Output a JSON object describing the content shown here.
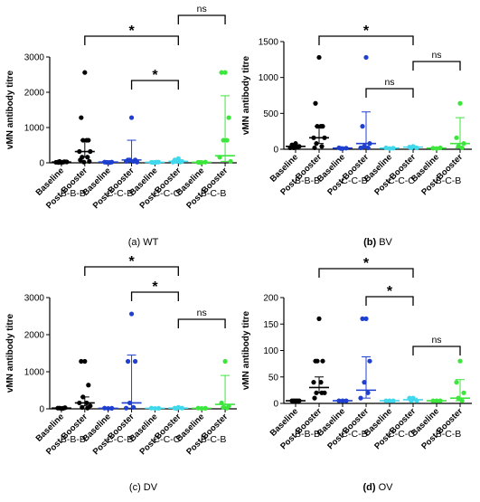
{
  "chart_data": [
    {
      "type": "scatter",
      "caption_letter": "(a)",
      "caption_text": "WT",
      "ylabel": "vMN antibody titre",
      "ylim": [
        0,
        3000
      ],
      "yticks": [
        0,
        1000,
        2000,
        3000
      ],
      "x_labels": [
        "Baseline",
        "Post-Booster",
        "Baseline",
        "Post-Booster",
        "Baseline",
        "Post-Booster",
        "Baseline",
        "Post-Booster"
      ],
      "groups": [
        "B-B-B",
        "C-C-B",
        "C-C-C",
        "B-C-B"
      ],
      "series": [
        {
          "group": "B-B-B",
          "timepoint": "Baseline",
          "color": "#000000",
          "median": 20,
          "err": [
            0,
            40
          ],
          "points": [
            10,
            20,
            30,
            40,
            20,
            15,
            25,
            10,
            30
          ]
        },
        {
          "group": "B-B-B",
          "timepoint": "Post-Booster",
          "color": "#000000",
          "median": 320,
          "err": [
            160,
            640
          ],
          "points": [
            2560,
            1280,
            640,
            640,
            640,
            320,
            320,
            160,
            160,
            80,
            40,
            20
          ]
        },
        {
          "group": "C-C-B",
          "timepoint": "Baseline",
          "color": "#1f3fd0",
          "median": 20,
          "err": [
            0,
            30
          ],
          "points": [
            10,
            20,
            20,
            15,
            10
          ]
        },
        {
          "group": "C-C-B",
          "timepoint": "Post-Booster",
          "color": "#1f3fd0",
          "median": 80,
          "err": [
            20,
            640
          ],
          "points": [
            1280,
            80,
            80,
            80,
            40,
            40,
            20
          ]
        },
        {
          "group": "C-C-C",
          "timepoint": "Baseline",
          "color": "#40d8ec",
          "median": 15,
          "err": [
            0,
            20
          ],
          "points": [
            10,
            15,
            20,
            10,
            20
          ]
        },
        {
          "group": "C-C-C",
          "timepoint": "Post-Booster",
          "color": "#40d8ec",
          "median": 40,
          "err": [
            20,
            80
          ],
          "points": [
            120,
            80,
            40,
            40,
            20,
            20
          ]
        },
        {
          "group": "B-C-B",
          "timepoint": "Baseline",
          "color": "#3ce63c",
          "median": 15,
          "err": [
            0,
            20
          ],
          "points": [
            10,
            15,
            20,
            10
          ]
        },
        {
          "group": "B-C-B",
          "timepoint": "Post-Booster",
          "color": "#3ce63c",
          "median": 200,
          "err": [
            40,
            1900
          ],
          "points": [
            2560,
            2560,
            1280,
            640,
            640,
            160,
            40
          ]
        }
      ],
      "comparisons": [
        {
          "from": 1,
          "to": 5,
          "label": "*"
        },
        {
          "from": 3,
          "to": 5,
          "label": "*"
        },
        {
          "from": 5,
          "to": 7,
          "label": "ns"
        }
      ]
    },
    {
      "type": "scatter",
      "caption_letter": "(b)",
      "caption_text": "BV",
      "ylabel": "vMN antibody titre",
      "ylim": [
        0,
        1500
      ],
      "yticks": [
        0,
        500,
        1000,
        1500
      ],
      "x_labels": [
        "Baseline",
        "Post-Booster",
        "Baseline",
        "Post-Booster",
        "Baseline",
        "Post-Booster",
        "Baseline",
        "Post-Booster"
      ],
      "groups": [
        "B-B-B",
        "C-C-B",
        "C-C-C",
        "B-C-B"
      ],
      "series": [
        {
          "group": "B-B-B",
          "timepoint": "Baseline",
          "color": "#000000",
          "median": 40,
          "err": [
            20,
            60
          ],
          "points": [
            80,
            60,
            40,
            20,
            30,
            20
          ]
        },
        {
          "group": "B-B-B",
          "timepoint": "Post-Booster",
          "color": "#000000",
          "median": 160,
          "err": [
            80,
            320
          ],
          "points": [
            1280,
            640,
            320,
            320,
            320,
            160,
            160,
            80,
            40,
            20
          ]
        },
        {
          "group": "C-C-B",
          "timepoint": "Baseline",
          "color": "#1f3fd0",
          "median": 15,
          "err": [
            0,
            20
          ],
          "points": [
            10,
            20,
            15,
            10
          ]
        },
        {
          "group": "C-C-B",
          "timepoint": "Post-Booster",
          "color": "#1f3fd0",
          "median": 80,
          "err": [
            20,
            520
          ],
          "points": [
            1280,
            320,
            80,
            40,
            20,
            20
          ]
        },
        {
          "group": "C-C-C",
          "timepoint": "Baseline",
          "color": "#40d8ec",
          "median": 15,
          "err": [
            0,
            20
          ],
          "points": [
            10,
            20,
            15
          ]
        },
        {
          "group": "C-C-C",
          "timepoint": "Post-Booster",
          "color": "#40d8ec",
          "median": 30,
          "err": [
            20,
            40
          ],
          "points": [
            40,
            30,
            20,
            20
          ]
        },
        {
          "group": "B-C-B",
          "timepoint": "Baseline",
          "color": "#3ce63c",
          "median": 15,
          "err": [
            0,
            20
          ],
          "points": [
            10,
            15,
            20
          ]
        },
        {
          "group": "B-C-B",
          "timepoint": "Post-Booster",
          "color": "#3ce63c",
          "median": 80,
          "err": [
            20,
            440
          ],
          "points": [
            640,
            160,
            80,
            40,
            20
          ]
        }
      ],
      "comparisons": [
        {
          "from": 1,
          "to": 5,
          "label": "*"
        },
        {
          "from": 3,
          "to": 5,
          "label": "ns"
        },
        {
          "from": 5,
          "to": 7,
          "label": "ns"
        }
      ]
    },
    {
      "type": "scatter",
      "caption_letter": "(c)",
      "caption_text": "DV",
      "ylabel": "vMN antibody titre",
      "ylim": [
        0,
        3000
      ],
      "yticks": [
        0,
        1000,
        2000,
        3000
      ],
      "x_labels": [
        "Baseline",
        "Post-Booster",
        "Baseline",
        "Post-Booster",
        "Baseline",
        "Post-Booster",
        "Baseline",
        "Post-Booster"
      ],
      "groups": [
        "B-B-B",
        "C-C-B",
        "C-C-C",
        "B-C-B"
      ],
      "series": [
        {
          "group": "B-B-B",
          "timepoint": "Baseline",
          "color": "#000000",
          "median": 20,
          "err": [
            0,
            40
          ],
          "points": [
            10,
            20,
            30,
            20,
            15
          ]
        },
        {
          "group": "B-B-B",
          "timepoint": "Post-Booster",
          "color": "#000000",
          "median": 160,
          "err": [
            80,
            320
          ],
          "points": [
            1280,
            1280,
            640,
            320,
            160,
            160,
            80,
            40,
            20
          ]
        },
        {
          "group": "C-C-B",
          "timepoint": "Baseline",
          "color": "#1f3fd0",
          "median": 15,
          "err": [
            0,
            20
          ],
          "points": [
            10,
            20,
            15
          ]
        },
        {
          "group": "C-C-B",
          "timepoint": "Post-Booster",
          "color": "#1f3fd0",
          "median": 160,
          "err": [
            20,
            1450
          ],
          "points": [
            2560,
            1280,
            1280,
            160,
            40,
            20
          ]
        },
        {
          "group": "C-C-C",
          "timepoint": "Baseline",
          "color": "#40d8ec",
          "median": 15,
          "err": [
            0,
            20
          ],
          "points": [
            10,
            20,
            15
          ]
        },
        {
          "group": "C-C-C",
          "timepoint": "Post-Booster",
          "color": "#40d8ec",
          "median": 20,
          "err": [
            10,
            40
          ],
          "points": [
            40,
            20,
            20,
            10
          ]
        },
        {
          "group": "B-C-B",
          "timepoint": "Baseline",
          "color": "#3ce63c",
          "median": 15,
          "err": [
            0,
            20
          ],
          "points": [
            10,
            20,
            15
          ]
        },
        {
          "group": "B-C-B",
          "timepoint": "Post-Booster",
          "color": "#3ce63c",
          "median": 120,
          "err": [
            40,
            900
          ],
          "points": [
            1280,
            160,
            80,
            40,
            20
          ]
        }
      ],
      "comparisons": [
        {
          "from": 1,
          "to": 5,
          "label": "*"
        },
        {
          "from": 3,
          "to": 5,
          "label": "*"
        },
        {
          "from": 5,
          "to": 7,
          "label": "ns"
        }
      ]
    },
    {
      "type": "scatter",
      "caption_letter": "(d)",
      "caption_text": "OV",
      "ylabel": "vMN antibody titre",
      "ylim": [
        0,
        200
      ],
      "yticks": [
        0,
        50,
        100,
        150,
        200
      ],
      "x_labels": [
        "Baseline",
        "Post-Booster",
        "Baseline",
        "Post-Booster",
        "Baseline",
        "Post-Booster",
        "Baseline",
        "Post-Booster"
      ],
      "groups": [
        "B-B-B",
        "C-C-B",
        "C-C-C",
        "B-C-B"
      ],
      "series": [
        {
          "group": "B-B-B",
          "timepoint": "Baseline",
          "color": "#000000",
          "median": 5,
          "err": [
            5,
            5
          ],
          "points": [
            5,
            5,
            5,
            5,
            5
          ]
        },
        {
          "group": "B-B-B",
          "timepoint": "Post-Booster",
          "color": "#000000",
          "median": 30,
          "err": [
            20,
            50
          ],
          "points": [
            160,
            80,
            80,
            80,
            40,
            40,
            20,
            20,
            20,
            10
          ]
        },
        {
          "group": "C-C-B",
          "timepoint": "Baseline",
          "color": "#1f3fd0",
          "median": 5,
          "err": [
            5,
            5
          ],
          "points": [
            5,
            5,
            5
          ]
        },
        {
          "group": "C-C-B",
          "timepoint": "Post-Booster",
          "color": "#1f3fd0",
          "median": 25,
          "err": [
            10,
            88
          ],
          "points": [
            160,
            160,
            80,
            40,
            20,
            10
          ]
        },
        {
          "group": "C-C-C",
          "timepoint": "Baseline",
          "color": "#40d8ec",
          "median": 5,
          "err": [
            5,
            5
          ],
          "points": [
            5,
            5,
            5
          ]
        },
        {
          "group": "C-C-C",
          "timepoint": "Post-Booster",
          "color": "#40d8ec",
          "median": 7,
          "err": [
            5,
            10
          ],
          "points": [
            10,
            10,
            5,
            5
          ]
        },
        {
          "group": "B-C-B",
          "timepoint": "Baseline",
          "color": "#3ce63c",
          "median": 5,
          "err": [
            5,
            5
          ],
          "points": [
            5,
            5,
            5
          ]
        },
        {
          "group": "B-C-B",
          "timepoint": "Post-Booster",
          "color": "#3ce63c",
          "median": 10,
          "err": [
            5,
            45
          ],
          "points": [
            80,
            40,
            20,
            10,
            5
          ]
        }
      ],
      "comparisons": [
        {
          "from": 1,
          "to": 5,
          "label": "*"
        },
        {
          "from": 3,
          "to": 5,
          "label": "*"
        },
        {
          "from": 5,
          "to": 7,
          "label": "ns"
        }
      ]
    }
  ]
}
